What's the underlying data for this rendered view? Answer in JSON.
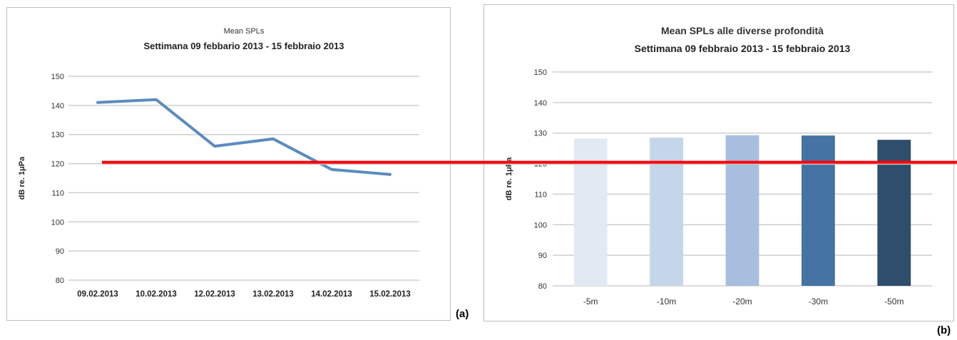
{
  "panels": [
    {
      "letter": "(a)",
      "chart_data": {
        "type": "line",
        "title": "Mean SPLs",
        "subtitle": "Settimana 09 febbario 2013 - 15 febbraio 2013",
        "xlabel": "",
        "ylabel": "dB re. 1μPa",
        "categories": [
          "09.02.2013",
          "10.02.2013",
          "12.02.2013",
          "13.02.2013",
          "14.02.2013",
          "15.02.2013"
        ],
        "values": [
          141,
          142,
          126,
          128.5,
          118,
          116.3
        ],
        "ylim": [
          80,
          150
        ],
        "yticks": [
          80,
          90,
          100,
          110,
          120,
          130,
          140,
          150
        ],
        "grid": true,
        "line_color": "#5b8cbf"
      }
    },
    {
      "letter": "(b)",
      "chart_data": {
        "type": "bar",
        "title": "Mean SPLs alle diverse profondità",
        "subtitle": "Settimana 09 febbraio 2013 - 15 febbraio 2013",
        "xlabel": "",
        "ylabel": "dB re. 1μPa",
        "categories": [
          "-5m",
          "-10m",
          "-20m",
          "-30m",
          "-50m"
        ],
        "values": [
          128.2,
          128.5,
          129.3,
          129.2,
          127.8
        ],
        "bar_colors": [
          "#e2e9f3",
          "#c6d6ea",
          "#a7bedf",
          "#4473a4",
          "#2f4d6d"
        ],
        "ylim": [
          80,
          150
        ],
        "yticks": [
          80,
          90,
          100,
          110,
          120,
          130,
          140,
          150
        ],
        "grid": true
      }
    }
  ],
  "reference_line": {
    "value": 120,
    "color": "#ff0000"
  }
}
